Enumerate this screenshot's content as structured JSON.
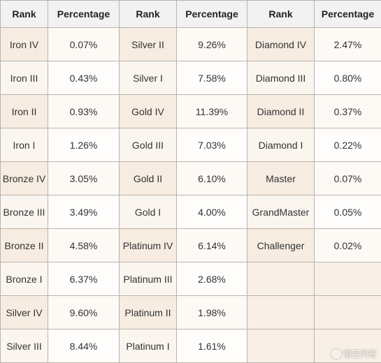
{
  "table": {
    "headers": [
      "Rank",
      "Percentage",
      "Rank",
      "Percentage",
      "Rank",
      "Percentage"
    ],
    "rows": [
      [
        "Iron IV",
        "0.07%",
        "Silver II",
        "9.26%",
        "Diamond IV",
        "2.47%"
      ],
      [
        "Iron III",
        "0.43%",
        "Silver I",
        "7.58%",
        "Diamond III",
        "0.80%"
      ],
      [
        "Iron II",
        "0.93%",
        "Gold IV",
        "11.39%",
        "Diamond II",
        "0.37%"
      ],
      [
        "Iron I",
        "1.26%",
        "Gold III",
        "7.03%",
        "Diamond I",
        "0.22%"
      ],
      [
        "Bronze IV",
        "3.05%",
        "Gold II",
        "6.10%",
        "Master",
        "0.07%"
      ],
      [
        "Bronze III",
        "3.49%",
        "Gold I",
        "4.00%",
        "GrandMaster",
        "0.05%"
      ],
      [
        "Bronze II",
        "4.58%",
        "Platinum IV",
        "6.14%",
        "Challenger",
        "0.02%"
      ],
      [
        "Bronze I",
        "6.37%",
        "Platinum III",
        "2.68%",
        "",
        ""
      ],
      [
        "Silver IV",
        "9.60%",
        "Platinum II",
        "1.98%",
        "",
        ""
      ],
      [
        "Silver III",
        "8.44%",
        "Platinum I",
        "1.61%",
        "",
        ""
      ]
    ]
  },
  "watermark": {
    "text": "悟空问答",
    "icon": "wukong-logo-icon"
  }
}
